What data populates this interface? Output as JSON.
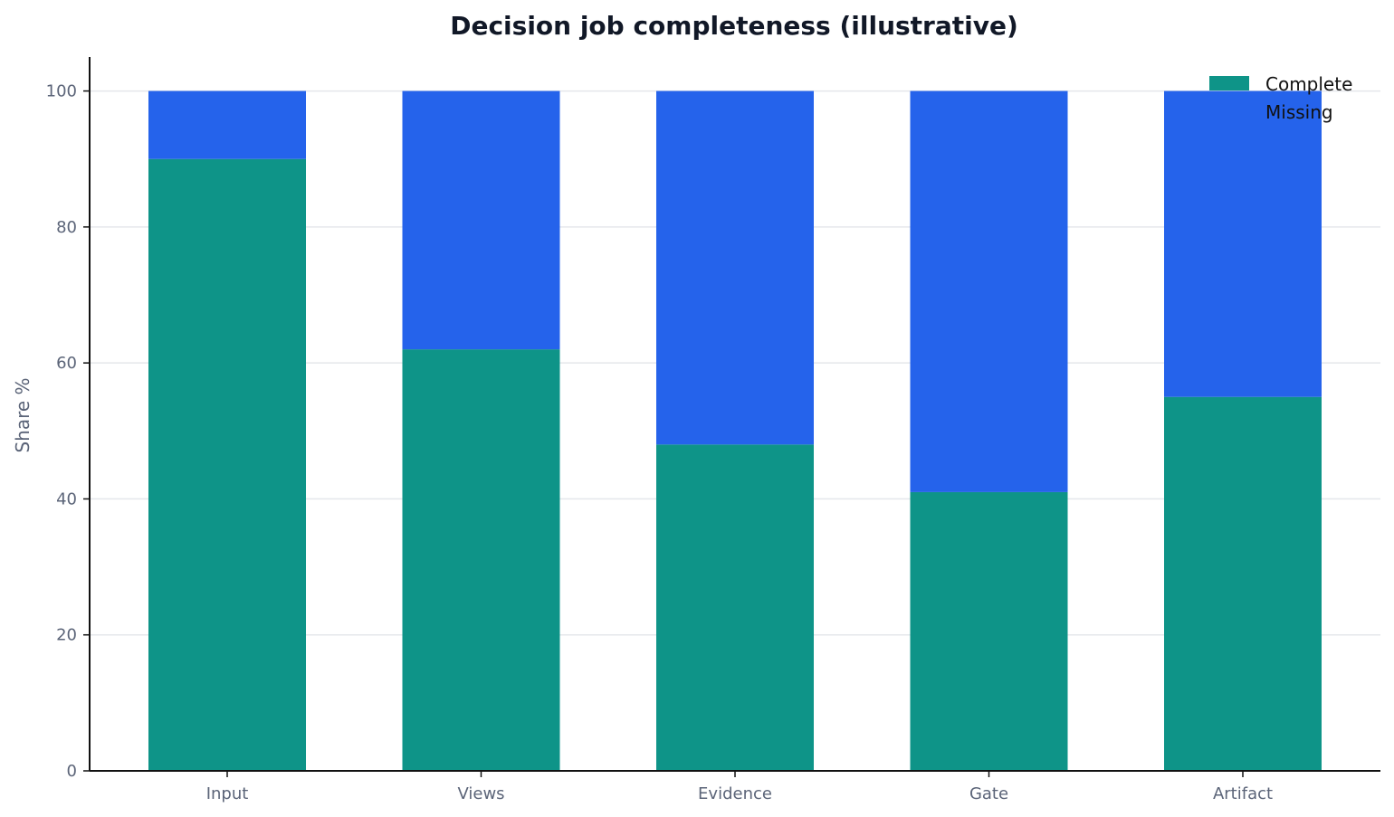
{
  "chart_data": {
    "type": "bar",
    "stacked": true,
    "title": "Decision job completeness (illustrative)",
    "xlabel": "",
    "ylabel": "Share %",
    "categories": [
      "Input",
      "Views",
      "Evidence",
      "Gate",
      "Artifact"
    ],
    "series": [
      {
        "name": "Complete",
        "values": [
          90,
          62,
          48,
          41,
          55
        ],
        "color": "#0e9488"
      },
      {
        "name": "Missing",
        "values": [
          10,
          38,
          52,
          59,
          45
        ],
        "color": "#2563eb"
      }
    ],
    "ylim": [
      0,
      105
    ],
    "yticks": [
      0,
      20,
      40,
      60,
      80,
      100
    ],
    "grid": "horizontal",
    "legend": "top-right",
    "colors": {
      "grid": "#e5e7eb",
      "axis": "#111111",
      "title": "#111827",
      "ticks": "#5b6478"
    }
  }
}
